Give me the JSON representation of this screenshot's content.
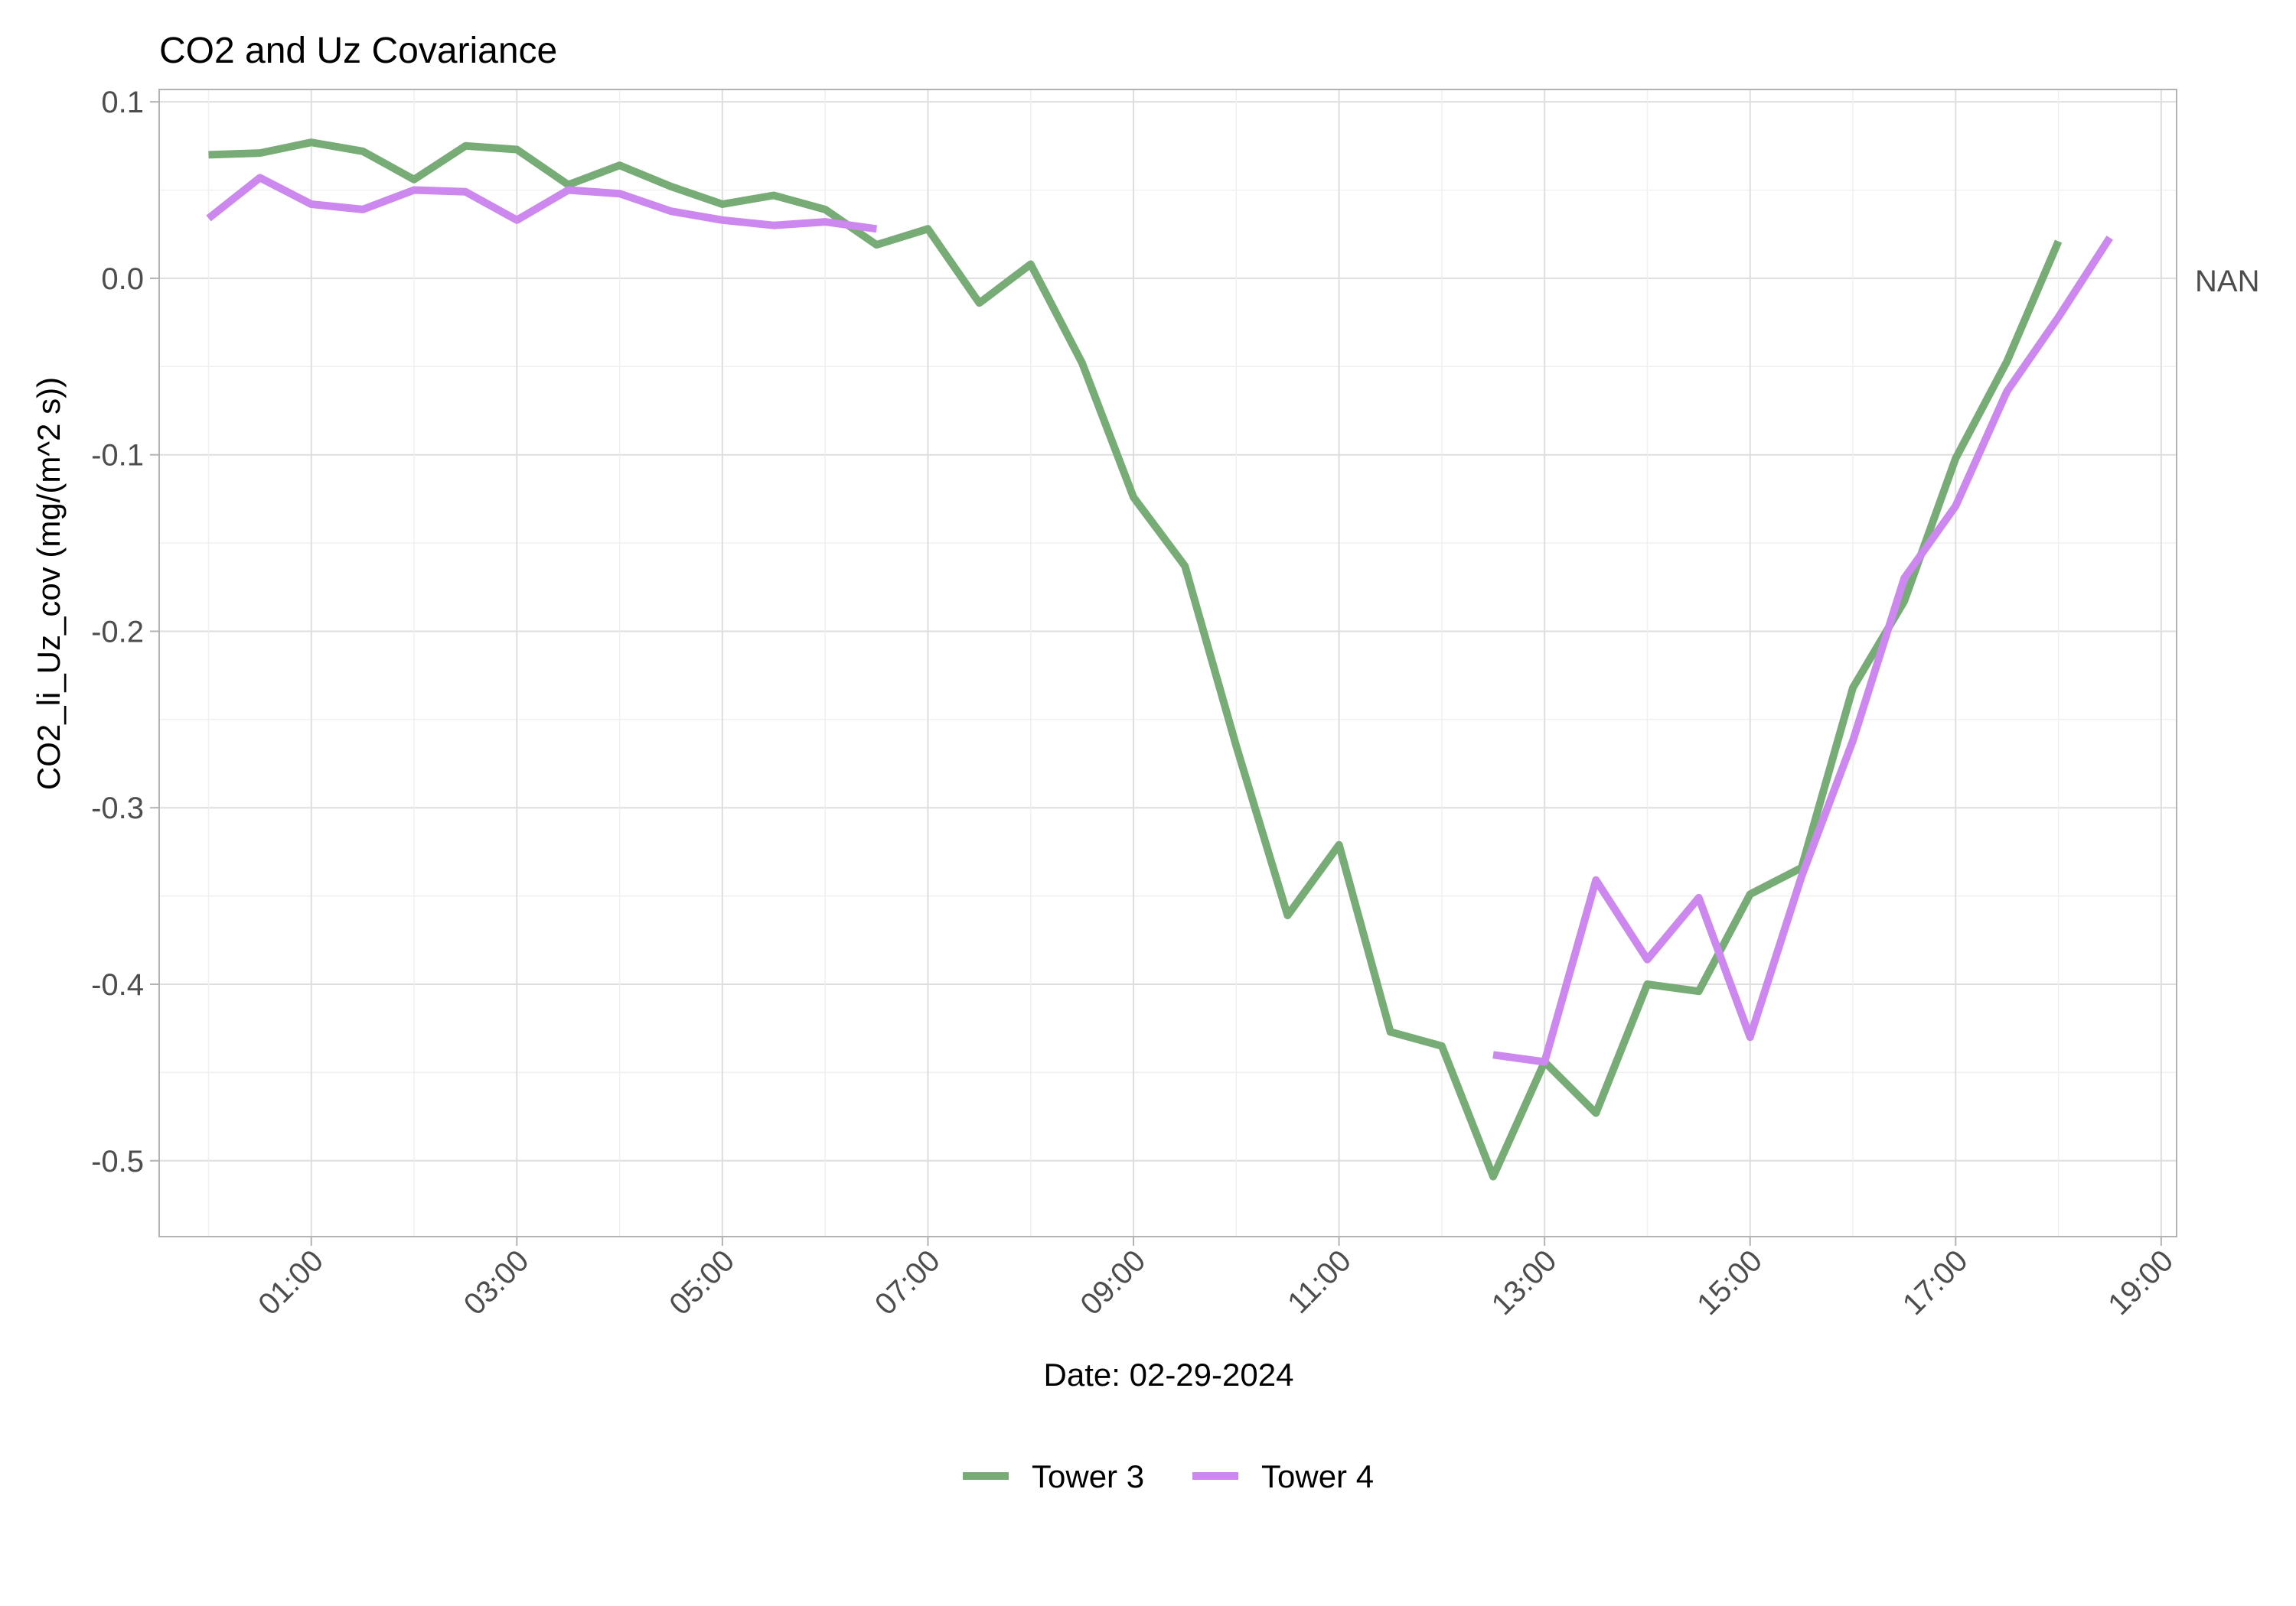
{
  "chart_data": {
    "type": "line",
    "title": "CO2 and Uz Covariance",
    "xlabel": "Date: 02-29-2024",
    "ylabel": "CO2_li_Uz_cov (mg/(m^2 s))",
    "right_label": "NAN",
    "x_unit": "hours",
    "xlim": [
      -0.48,
      19.15
    ],
    "ylim": [
      -0.543,
      0.107
    ],
    "x_ticks": [
      1,
      3,
      5,
      7,
      9,
      11,
      13,
      15,
      17,
      19
    ],
    "x_tick_labels": [
      "01:00",
      "03:00",
      "05:00",
      "07:00",
      "09:00",
      "11:00",
      "13:00",
      "15:00",
      "17:00",
      "19:00"
    ],
    "y_ticks": [
      0.1,
      0.0,
      -0.1,
      -0.2,
      -0.3,
      -0.4,
      -0.5
    ],
    "y_tick_labels": [
      "0.1",
      "0.0",
      "-0.1",
      "-0.2",
      "-0.3",
      "-0.4",
      "-0.5"
    ],
    "grid": true,
    "legend_position": "bottom",
    "series": [
      {
        "name": "Tower 3",
        "color": "#77ac77",
        "segments": [
          [
            [
              0.0,
              0.07
            ],
            [
              0.5,
              0.071
            ],
            [
              1.0,
              0.077
            ],
            [
              1.5,
              0.072
            ],
            [
              2.0,
              0.056
            ],
            [
              2.5,
              0.075
            ],
            [
              3.0,
              0.073
            ],
            [
              3.5,
              0.053
            ],
            [
              4.0,
              0.064
            ],
            [
              4.5,
              0.052
            ],
            [
              5.0,
              0.042
            ],
            [
              5.5,
              0.047
            ],
            [
              6.0,
              0.039
            ],
            [
              6.5,
              0.019
            ],
            [
              7.0,
              0.028
            ],
            [
              7.5,
              -0.014
            ],
            [
              8.0,
              0.008
            ],
            [
              8.5,
              -0.048
            ],
            [
              9.0,
              -0.124
            ],
            [
              9.5,
              -0.163
            ],
            [
              10.0,
              -0.265
            ],
            [
              10.5,
              -0.361
            ],
            [
              11.0,
              -0.321
            ],
            [
              11.5,
              -0.427
            ],
            [
              12.0,
              -0.435
            ],
            [
              12.5,
              -0.509
            ],
            [
              13.0,
              -0.444
            ],
            [
              13.5,
              -0.473
            ],
            [
              14.0,
              -0.4
            ],
            [
              14.5,
              -0.404
            ],
            [
              15.0,
              -0.349
            ],
            [
              15.5,
              -0.334
            ],
            [
              16.0,
              -0.232
            ],
            [
              16.5,
              -0.183
            ],
            [
              17.0,
              -0.102
            ],
            [
              17.5,
              -0.047
            ],
            [
              18.0,
              0.021
            ]
          ]
        ]
      },
      {
        "name": "Tower 4",
        "color": "#cc88ee",
        "segments": [
          [
            [
              0.0,
              0.034
            ],
            [
              0.5,
              0.057
            ],
            [
              1.0,
              0.042
            ],
            [
              1.5,
              0.039
            ],
            [
              2.0,
              0.05
            ],
            [
              2.5,
              0.049
            ],
            [
              3.0,
              0.033
            ],
            [
              3.5,
              0.05
            ],
            [
              4.0,
              0.048
            ],
            [
              4.5,
              0.038
            ],
            [
              5.0,
              0.033
            ],
            [
              5.5,
              0.03
            ],
            [
              6.0,
              0.032
            ],
            [
              6.5,
              0.028
            ]
          ],
          [
            [
              12.5,
              -0.44
            ],
            [
              13.0,
              -0.444
            ],
            [
              13.5,
              -0.341
            ],
            [
              14.0,
              -0.386
            ],
            [
              14.5,
              -0.351
            ],
            [
              15.0,
              -0.43
            ],
            [
              15.5,
              -0.339
            ],
            [
              16.0,
              -0.262
            ],
            [
              16.5,
              -0.17
            ],
            [
              17.0,
              -0.129
            ],
            [
              17.5,
              -0.064
            ],
            [
              18.0,
              -0.022
            ],
            [
              18.5,
              0.023
            ]
          ]
        ]
      }
    ]
  }
}
